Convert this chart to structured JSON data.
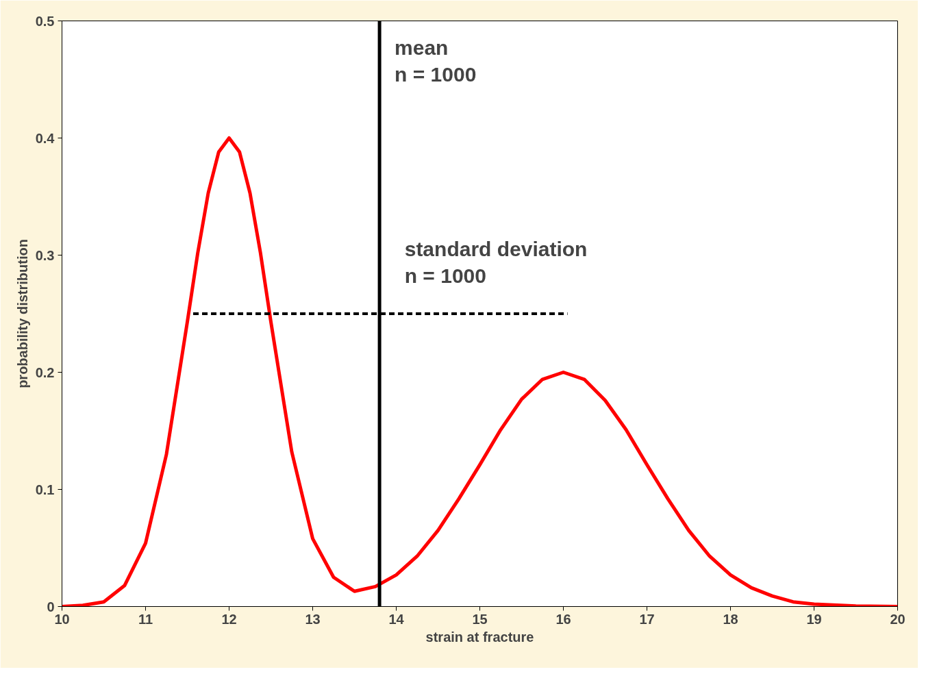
{
  "chart_data": {
    "type": "line",
    "xlabel": "strain at fracture",
    "ylabel": "probability distribution",
    "xlim": [
      10,
      20
    ],
    "ylim": [
      0,
      0.5
    ],
    "xticks": [
      10,
      11,
      12,
      13,
      14,
      15,
      16,
      17,
      18,
      19,
      20
    ],
    "yticks": [
      0,
      0.1,
      0.2,
      0.3,
      0.4,
      0.5
    ],
    "grid": false,
    "marker": "none",
    "series": [
      {
        "color": "#ff0000",
        "line_style": "solid",
        "x": [
          10,
          10.25,
          10.5,
          10.75,
          11,
          11.25,
          11.5,
          11.625,
          11.75,
          11.875,
          12,
          12.125,
          12.25,
          12.375,
          12.5,
          12.75,
          13,
          13.25,
          13.5,
          13.75,
          14,
          14.25,
          14.5,
          14.75,
          15,
          15.25,
          15.5,
          15.75,
          16,
          16.25,
          16.5,
          16.75,
          17,
          17.25,
          17.5,
          17.75,
          18,
          18.25,
          18.5,
          18.75,
          19,
          19.5,
          20
        ],
        "values": [
          0,
          0.001,
          0.004,
          0.018,
          0.054,
          0.13,
          0.243,
          0.302,
          0.353,
          0.388,
          0.4,
          0.388,
          0.353,
          0.302,
          0.243,
          0.132,
          0.058,
          0.025,
          0.013,
          0.017,
          0.027,
          0.043,
          0.065,
          0.092,
          0.121,
          0.151,
          0.177,
          0.194,
          0.2,
          0.194,
          0.176,
          0.151,
          0.121,
          0.092,
          0.065,
          0.043,
          0.027,
          0.016,
          0.009,
          0.004,
          0.002,
          0.0005,
          0
        ]
      },
      {
        "color": "#000000",
        "line_style": "dashed",
        "x": [
          11.57,
          16.05
        ],
        "values": [
          0.25,
          0.25
        ]
      }
    ],
    "ref_lines": [
      {
        "axis": "x",
        "value": 13.8,
        "color": "#000000",
        "line_style": "solid"
      }
    ],
    "annotations": [
      "mean\nn = 1000",
      "standard deviation\nn = 1000"
    ]
  }
}
